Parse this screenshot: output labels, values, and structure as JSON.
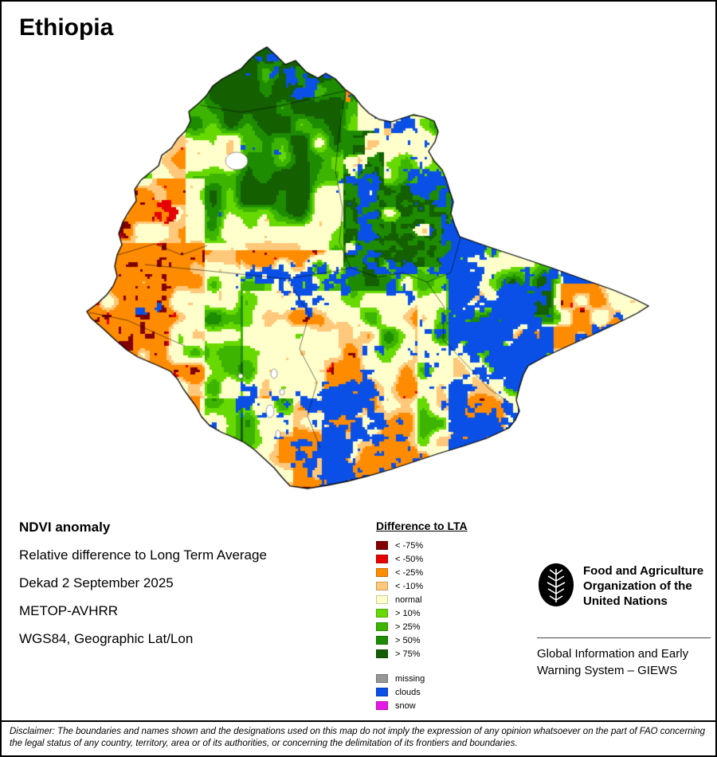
{
  "page": {
    "title": "Ethiopia"
  },
  "info": {
    "heading": "NDVI anomaly",
    "lines": [
      "Relative difference to Long Term Average",
      "Dekad 2 September 2025",
      "METOP-AVHRR",
      "WGS84, Geographic Lat/Lon"
    ]
  },
  "legend": {
    "title": "Difference to LTA",
    "items": [
      {
        "label": "< -75%",
        "color": "#800000"
      },
      {
        "label": "< -50%",
        "color": "#e60000"
      },
      {
        "label": "< -25%",
        "color": "#ff8c00"
      },
      {
        "label": "< -10%",
        "color": "#ffc87a"
      },
      {
        "label": "normal",
        "color": "#ffffcc"
      },
      {
        "label": "> 10%",
        "color": "#66d900"
      },
      {
        "label": "> 25%",
        "color": "#3cb400"
      },
      {
        "label": "> 50%",
        "color": "#1e8c00"
      },
      {
        "label": "> 75%",
        "color": "#145f00"
      }
    ],
    "extra_items": [
      {
        "label": "missing",
        "color": "#969696"
      },
      {
        "label": "clouds",
        "color": "#0a50e6"
      },
      {
        "label": "snow",
        "color": "#e619e6"
      }
    ]
  },
  "branding": {
    "org_lines": [
      "Food and Agriculture",
      "Organization of the",
      "United Nations"
    ],
    "program_lines": [
      "Global Information and Early",
      "Warning System – GIEWS"
    ]
  },
  "disclaimer": "Disclaimer: The boundaries and names shown and the designations used on this map do not imply the expression of any opinion whatsoever on the part of FAO concerning the legal status of any country, territory, area or of its authorities, or concerning the delimitation of its frontiers and boundaries.",
  "map": {
    "title": "Ethiopia NDVI anomaly map",
    "palette": {
      "darkred": "#800000",
      "red": "#e60000",
      "orange": "#ff8c00",
      "lightorange": "#ffc87a",
      "normal": "#ffffcc",
      "green10": "#66d900",
      "green25": "#3cb400",
      "green50": "#1e8c00",
      "green75": "#145f00",
      "missing": "#969696",
      "clouds": "#0a50e6",
      "snow": "#e619e6",
      "water": "#ffffff",
      "boundary": "#000000"
    }
  }
}
